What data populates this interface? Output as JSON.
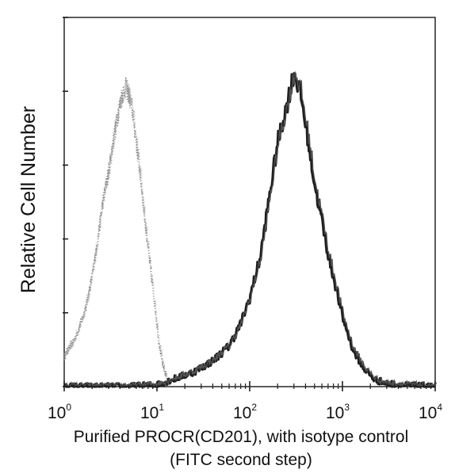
{
  "chart_data": {
    "type": "histogram-overlay",
    "x_scale": "log",
    "xlim": [
      1,
      10000
    ],
    "ylim": [
      0,
      1
    ],
    "xlabel_line1": "Purified PROCR(CD201), with isotype control",
    "xlabel_line2": "(FITC second step)",
    "ylabel": "Relative Cell Number",
    "x_ticks": [
      {
        "value": 1,
        "base": "10",
        "exp": "0"
      },
      {
        "value": 10,
        "base": "10",
        "exp": "1"
      },
      {
        "value": 100,
        "base": "10",
        "exp": "2"
      },
      {
        "value": 1000,
        "base": "10",
        "exp": "3"
      },
      {
        "value": 10000,
        "base": "10",
        "exp": "4"
      }
    ],
    "y_ticks": [
      0,
      0.2,
      0.4,
      0.6,
      0.8,
      1.0
    ],
    "grid": false,
    "legend": "none",
    "series": [
      {
        "style": "dotted",
        "color": "#8a8a8a",
        "x": [
          1.0,
          1.1,
          1.25,
          1.4,
          1.6,
          1.8,
          2.0,
          2.3,
          2.6,
          3.0,
          3.4,
          3.8,
          4.2,
          4.6,
          5.0,
          5.5,
          6.0,
          6.7,
          7.5,
          8.5,
          9.5,
          10.5,
          11.5,
          12.5,
          13.5
        ],
        "y": [
          0.08,
          0.1,
          0.12,
          0.15,
          0.19,
          0.24,
          0.3,
          0.4,
          0.5,
          0.58,
          0.67,
          0.74,
          0.79,
          0.81,
          0.79,
          0.74,
          0.66,
          0.56,
          0.44,
          0.32,
          0.22,
          0.12,
          0.06,
          0.03,
          0.0
        ]
      },
      {
        "style": "solid-noisy",
        "color": "#1f1f1f",
        "x": [
          1.0,
          2.0,
          5.0,
          10.0,
          15.0,
          25.0,
          40.0,
          60.0,
          80.0,
          100.0,
          130.0,
          160.0,
          200.0,
          250.0,
          300.0,
          350.0,
          420.0,
          500.0,
          600.0,
          700.0,
          850.0,
          1000.0,
          1300.0,
          1700.0,
          2200.0,
          3000.0,
          5000.0,
          10000.0
        ],
        "y": [
          0.0,
          0.0,
          0.0,
          0.005,
          0.02,
          0.04,
          0.07,
          0.11,
          0.17,
          0.24,
          0.35,
          0.5,
          0.66,
          0.76,
          0.85,
          0.8,
          0.68,
          0.55,
          0.45,
          0.36,
          0.27,
          0.19,
          0.1,
          0.05,
          0.02,
          0.008,
          0.003,
          0.0
        ]
      }
    ]
  }
}
